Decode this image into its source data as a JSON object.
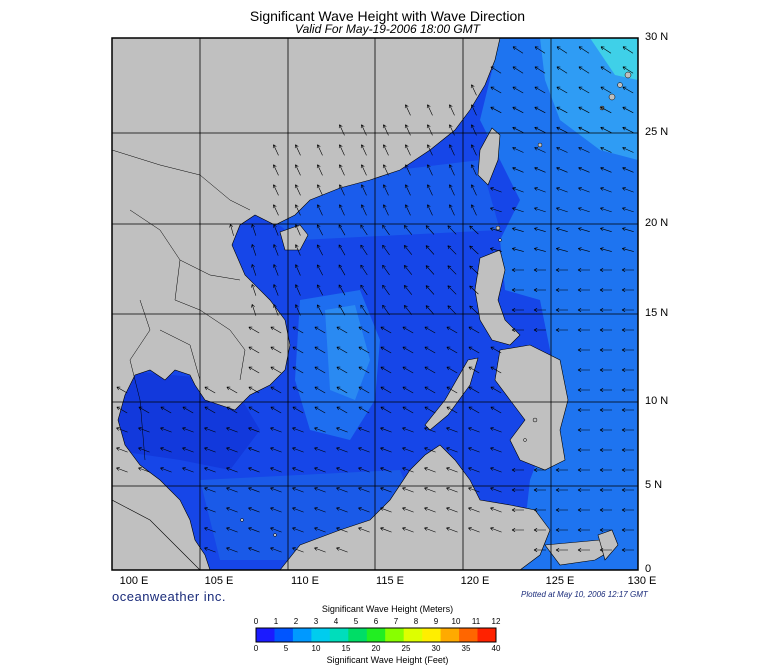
{
  "title": "Significant Wave Height with Wave Direction",
  "subtitle": "Valid For May-19-2006 18:00 GMT",
  "lat_labels": [
    "30 N",
    "25 N",
    "20 N",
    "15 N",
    "10 N",
    "5 N",
    "0"
  ],
  "lon_labels": [
    "100 E",
    "105 E",
    "110 E",
    "115 E",
    "120 E",
    "125 E",
    "130 E"
  ],
  "brand": "oceanweather inc.",
  "plotted": "Plotted at May 10, 2006 12:17 GMT",
  "colorbar": {
    "title_meters": "Significant Wave Height (Meters)",
    "title_feet": "Significant Wave Height (Feet)",
    "meter_ticks": [
      "0",
      "1",
      "2",
      "3",
      "4",
      "5",
      "6",
      "7",
      "8",
      "9",
      "10",
      "11",
      "12"
    ],
    "feet_ticks": [
      "0",
      "5",
      "10",
      "15",
      "20",
      "25",
      "30",
      "35",
      "40"
    ],
    "colors": [
      "#1b1bff",
      "#0055ff",
      "#0099ff",
      "#00ccee",
      "#00ddbb",
      "#00dd66",
      "#22ee22",
      "#88ff00",
      "#ddff00",
      "#ffee00",
      "#ffaa00",
      "#ff6600",
      "#ff2200"
    ]
  },
  "colors": {
    "land": "#c0c0c0",
    "sea_base": "#1646e8",
    "sea_calm": "#1030d0",
    "sea_mid": "#1e74f0",
    "sea_light": "#36a8f6",
    "grid": "#000000"
  }
}
